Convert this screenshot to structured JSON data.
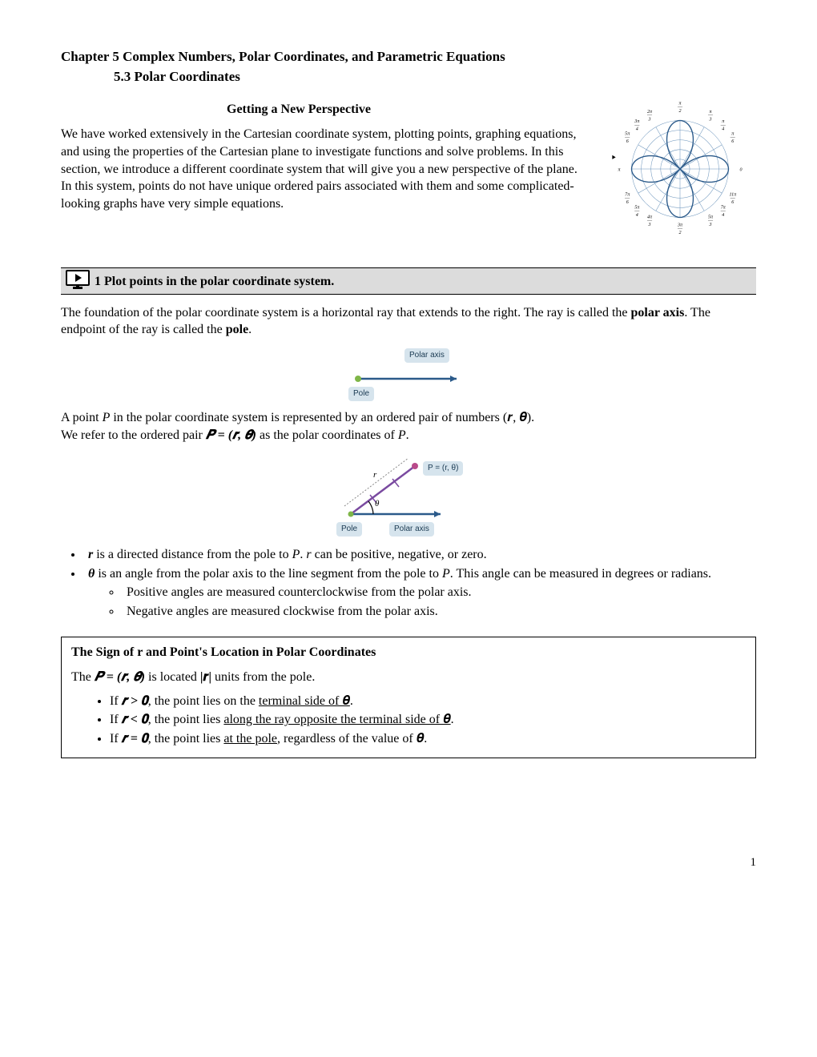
{
  "chapter_title": "Chapter 5 Complex Numbers, Polar Coordinates, and Parametric Equations",
  "section_title": "5.3 Polar Coordinates",
  "subtitle": "Getting a New Perspective",
  "intro_paragraph": "We have worked extensively in the Cartesian coordinate system, plotting points, graphing equations, and using the properties of the Cartesian plane to investigate functions and solve problems. In this section, we introduce a different coordinate system that will give you a new perspective of the plane. In this system, points do not have unique ordered pairs associated with them and some complicated-looking graphs have very simple equations.",
  "objective_number": "1",
  "objective_text": "Plot points in the polar coordinate system.",
  "foundation_paragraph_parts": [
    "The foundation of the polar coordinate system is a horizontal ray that extends to the right. The ray is called the ",
    "polar axis",
    ". The endpoint of the ray is called the ",
    "pole",
    "."
  ],
  "diagram1": {
    "polar_axis_label": "Polar axis",
    "pole_label": "Pole",
    "axis_color": "#2b5a8a",
    "dot_color": "#7fb648",
    "tag_bg": "#d6e4ed"
  },
  "point_paragraph_line1_parts": [
    "A point ",
    "P",
    " in the polar coordinate system is represented by an ordered pair of numbers ",
    "(𝒓, 𝜽)",
    "."
  ],
  "point_paragraph_line2_parts": [
    "We refer to the ordered pair ",
    "𝑷 = (𝒓, 𝜽)",
    " as the polar coordinates of ",
    "P",
    "."
  ],
  "diagram2": {
    "point_label": "P = (r, θ)",
    "theta_label": "θ",
    "r_label": "r",
    "pole_label": "Pole",
    "polar_axis_label": "Polar axis",
    "axis_color": "#2b5a8a",
    "r_color": "#7a4aa0",
    "dot_color": "#b94a8a"
  },
  "bullets": {
    "r_parts": [
      "r",
      " is a directed distance from the pole to ",
      "P",
      ".  ",
      "r",
      " can be positive, negative, or zero."
    ],
    "theta_parts": [
      "θ",
      " is an angle from the polar axis to the line segment from the pole to ",
      "P",
      ". This angle can be measured in degrees or radians."
    ],
    "sub_positive": "Positive angles are measured counterclockwise from the polar axis.",
    "sub_negative": "Negative angles are measured clockwise from the polar axis."
  },
  "box": {
    "title": "The Sign of r and Point's Location in Polar Coordinates",
    "lead_parts": [
      "The ",
      "𝑷 = (𝒓, 𝜽)",
      " is located ",
      "|𝒓|",
      " units from the pole."
    ],
    "item1": {
      "cond": "𝒓 > 𝟎",
      "text_before": "If ",
      "text_mid": ", the point lies on the ",
      "u": "terminal side of 𝜽",
      "after": "."
    },
    "item2": {
      "cond": "𝒓 < 𝟎",
      "text_before": "If ",
      "text_mid": ", the point lies ",
      "u": "along the ray opposite the terminal side of 𝜽",
      "after": "."
    },
    "item3": {
      "cond": "𝒓 = 𝟎",
      "text_before": "If ",
      "text_mid": ", the point lies ",
      "u": "at the pole",
      "after": ", regardless of the value of 𝜽."
    }
  },
  "polar_grid": {
    "circle_count": 5,
    "grid_color": "#6a93bb",
    "rose_color": "#2b5a8a",
    "angle_labels": [
      {
        "t": "π/2",
        "a": 90
      },
      {
        "t": "π/3",
        "a": 60
      },
      {
        "t": "π/4",
        "a": 45
      },
      {
        "t": "π/6",
        "a": 30
      },
      {
        "t": "0",
        "a": 0
      },
      {
        "t": "11π/6",
        "a": -30
      },
      {
        "t": "7π/4",
        "a": -45
      },
      {
        "t": "5π/3",
        "a": -60
      },
      {
        "t": "3π/2",
        "a": -90
      },
      {
        "t": "4π/3",
        "a": -120
      },
      {
        "t": "5π/4",
        "a": -135
      },
      {
        "t": "7π/6",
        "a": -150
      },
      {
        "t": "π",
        "a": 180
      },
      {
        "t": "5π/6",
        "a": 150
      },
      {
        "t": "3π/4",
        "a": 135
      },
      {
        "t": "2π/3",
        "a": 120
      }
    ]
  },
  "page_number": "1"
}
